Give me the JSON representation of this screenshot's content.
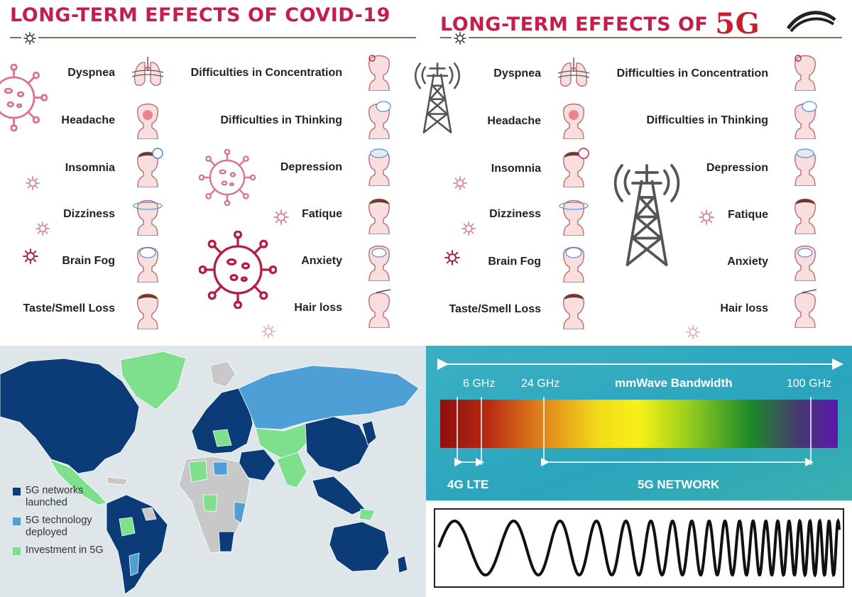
{
  "covid_panel": {
    "title": "LONG-TERM EFFECTS OF COVID-19",
    "left_symptoms": [
      "Dyspnea",
      "Headache",
      "Insomnia",
      "Dizziness",
      "Brain Fog",
      "Taste/Smell Loss"
    ],
    "right_symptoms": [
      "Difficulties in Concentration",
      "Difficulties in Thinking",
      "Depression",
      "Fatique",
      "Anxiety",
      "Hair loss"
    ]
  },
  "fiveg_panel": {
    "title_prefix": "LONG-TERM EFFECTS OF",
    "title_suffix": "5G",
    "left_symptoms": [
      "Dyspnea",
      "Headache",
      "Insomnia",
      "Dizziness",
      "Brain Fog",
      "Taste/Smell Loss"
    ],
    "right_symptoms": [
      "Difficulties in Concentration",
      "Difficulties in Thinking",
      "Depression",
      "Fatique",
      "Anxiety",
      "Hair loss"
    ]
  },
  "map_panel": {
    "legend": [
      {
        "label": "5G networks launched",
        "color": "#0b3c78"
      },
      {
        "label": "5G technology deployed",
        "color": "#4d9fd6"
      },
      {
        "label": "Investment in 5G",
        "color": "#7ee08d"
      }
    ],
    "colors": {
      "no_data": "#c8c8c8",
      "ocean": "#dfe6ea"
    }
  },
  "spectrum_panel": {
    "title": "mmWave Bandwidth",
    "ticks": [
      "6 GHz",
      "24 GHz",
      "100 GHz"
    ],
    "range_labels": [
      "4G LTE",
      "5G NETWORK"
    ]
  },
  "icons": [
    "virus-icon",
    "cell-tower-icon",
    "lungs-icon",
    "head-icon",
    "sun-icon",
    "wave-icon"
  ],
  "colors": {
    "accent_red": "#c41f4a",
    "virus_pink": "#d8778a",
    "tower_gray": "#5a5a5a"
  }
}
